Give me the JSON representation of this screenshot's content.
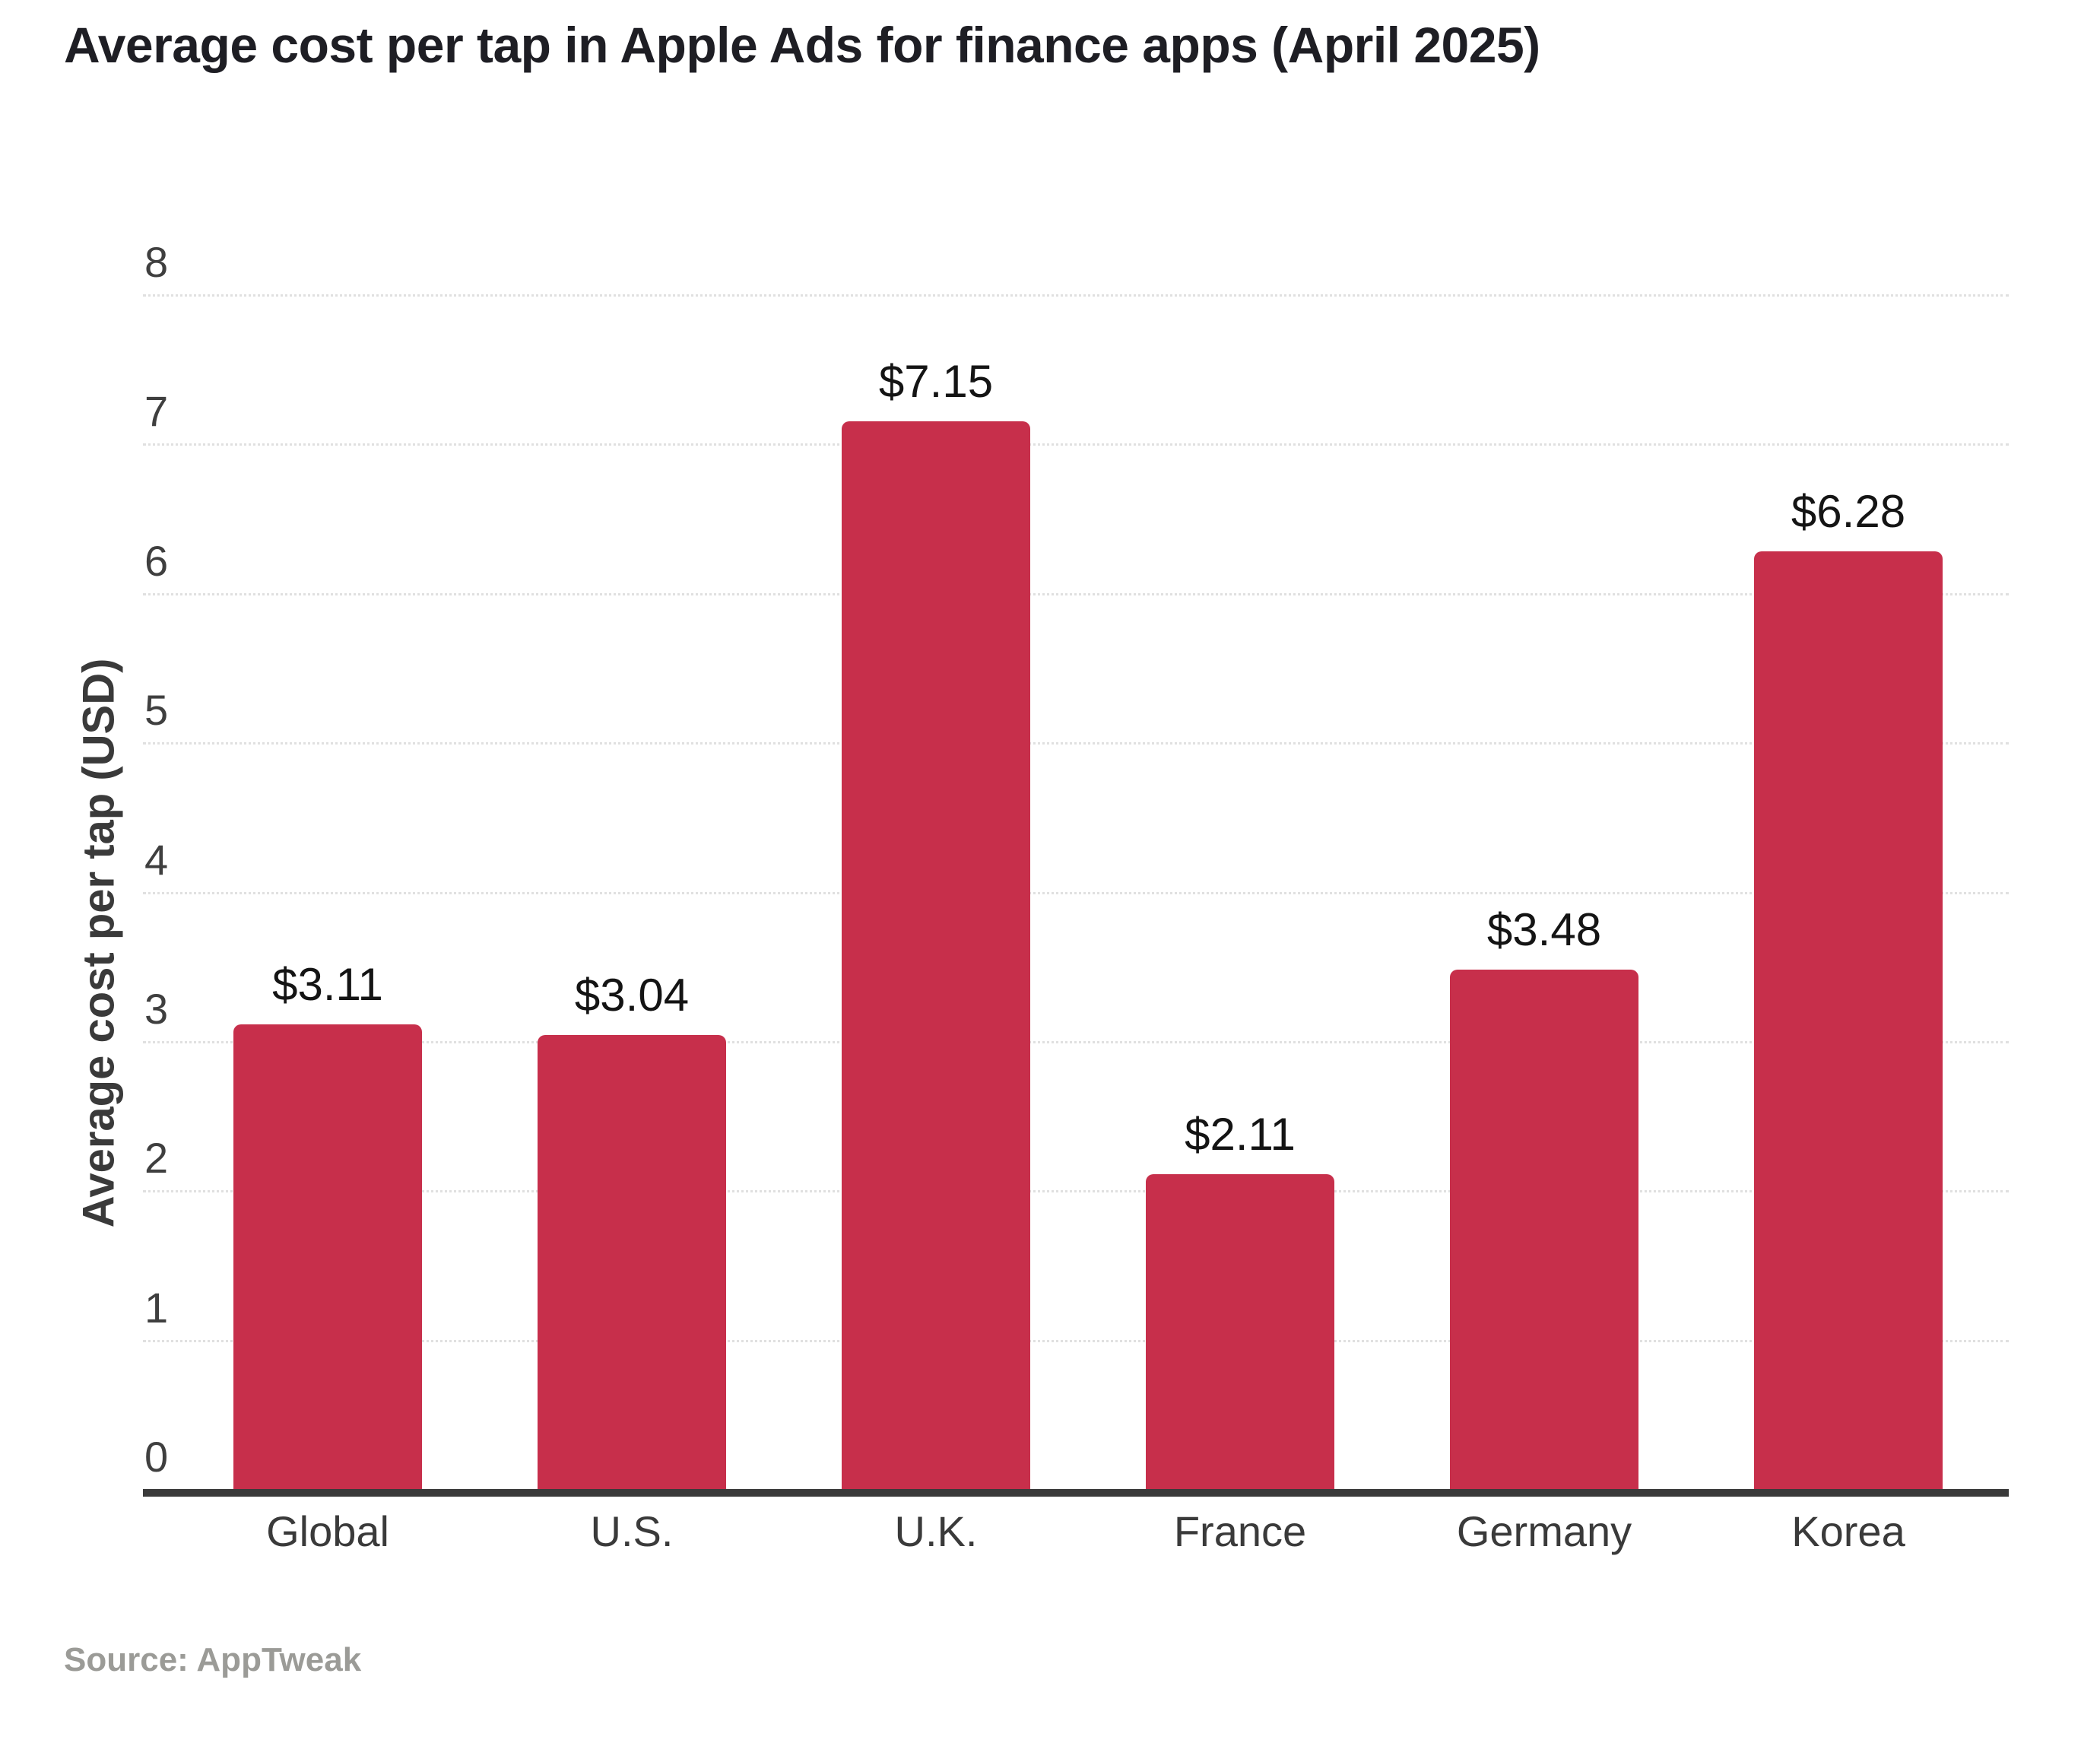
{
  "title": "Average cost per tap in Apple Ads for finance apps (April 2025)",
  "source": "Source: AppTweak",
  "colors": {
    "bar": "#C72F4B",
    "axis": "#3A3A3A",
    "grid": "#E0E0E0",
    "title": "#1E1E24",
    "tick": "#3F3F3F",
    "value_label": "#141414",
    "source_text": "#9B9B97"
  },
  "chart_data": {
    "type": "bar",
    "title": "Average cost per tap in Apple Ads for finance apps (April 2025)",
    "categories": [
      "Global",
      "U.S.",
      "U.K.",
      "France",
      "Germany",
      "Korea"
    ],
    "values": [
      3.11,
      3.04,
      7.15,
      2.11,
      3.48,
      6.28
    ],
    "value_labels": [
      "$3.11",
      "$3.04",
      "$7.15",
      "$2.11",
      "$3.48",
      "$6.28"
    ],
    "xlabel": "",
    "ylabel": "Average cost per tap (USD)",
    "ylim": [
      0,
      8
    ],
    "yticks": [
      0,
      1,
      2,
      3,
      4,
      5,
      6,
      7,
      8
    ],
    "grid": "horizontal-dotted",
    "legend": "none",
    "bar_color": "#C72F4B",
    "source": "Source: AppTweak"
  }
}
